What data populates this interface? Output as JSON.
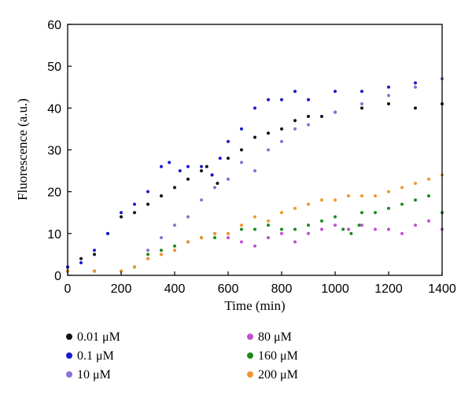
{
  "chart_data": {
    "type": "scatter",
    "title": "",
    "xlabel": "Time (min)",
    "ylabel": "Fluorescence (a.u.)",
    "xlim": [
      0,
      1400
    ],
    "ylim": [
      0,
      60
    ],
    "xticks": [
      0,
      200,
      400,
      600,
      800,
      1000,
      1200,
      1400
    ],
    "yticks": [
      0,
      10,
      20,
      30,
      40,
      50,
      60
    ],
    "grid": false,
    "legend_position": "below",
    "series": [
      {
        "name": "0.01 μM",
        "color": "#111111",
        "x": [
          0,
          50,
          100,
          150,
          200,
          250,
          300,
          350,
          400,
          450,
          500,
          520,
          540,
          560,
          600,
          650,
          700,
          750,
          800,
          850,
          900,
          950,
          1000,
          1100,
          1200,
          1300,
          1400
        ],
        "y": [
          2,
          4,
          5,
          10,
          14,
          15,
          17,
          19,
          21,
          23,
          25,
          26,
          24,
          22,
          28,
          30,
          33,
          34,
          35,
          37,
          38,
          38,
          39,
          40,
          41,
          40,
          41
        ]
      },
      {
        "name": "0.1 μM",
        "color": "#1a1acc",
        "x": [
          0,
          50,
          100,
          150,
          200,
          250,
          300,
          350,
          380,
          420,
          450,
          500,
          540,
          570,
          600,
          650,
          700,
          750,
          800,
          850,
          900,
          1000,
          1100,
          1200,
          1300,
          1400
        ],
        "y": [
          2,
          3,
          6,
          10,
          15,
          17,
          20,
          26,
          27,
          25,
          26,
          26,
          24,
          28,
          32,
          35,
          40,
          42,
          42,
          44,
          42,
          44,
          44,
          45,
          46,
          47
        ]
      },
      {
        "name": "10 μM",
        "color": "#8a6fd6",
        "x": [
          0,
          100,
          200,
          250,
          300,
          350,
          400,
          450,
          500,
          550,
          600,
          650,
          700,
          750,
          800,
          850,
          900,
          1000,
          1100,
          1200,
          1300,
          1400
        ],
        "y": [
          1,
          1,
          1,
          2,
          6,
          9,
          12,
          14,
          18,
          21,
          23,
          27,
          25,
          30,
          32,
          35,
          36,
          39,
          41,
          43,
          45,
          47
        ]
      },
      {
        "name": "80 μM",
        "color": "#c050d0",
        "x": [
          0,
          100,
          200,
          250,
          300,
          350,
          400,
          450,
          500,
          550,
          600,
          650,
          700,
          750,
          800,
          850,
          900,
          950,
          1000,
          1050,
          1100,
          1150,
          1200,
          1250,
          1300,
          1350,
          1400
        ],
        "y": [
          1,
          1,
          1,
          2,
          4,
          5,
          6,
          8,
          9,
          10,
          9,
          8,
          7,
          9,
          10,
          8,
          10,
          11,
          12,
          11,
          12,
          11,
          11,
          10,
          12,
          13,
          11
        ]
      },
      {
        "name": "160 μM",
        "color": "#1e8a1e",
        "x": [
          0,
          100,
          200,
          250,
          300,
          350,
          400,
          450,
          500,
          550,
          600,
          650,
          700,
          750,
          800,
          850,
          900,
          950,
          1000,
          1030,
          1060,
          1090,
          1100,
          1150,
          1200,
          1250,
          1300,
          1350,
          1400
        ],
        "y": [
          1,
          1,
          1,
          2,
          5,
          6,
          7,
          8,
          9,
          9,
          10,
          11,
          11,
          12,
          11,
          11,
          12,
          13,
          14,
          11,
          10,
          12,
          15,
          15,
          16,
          17,
          18,
          19,
          15
        ]
      },
      {
        "name": "200 μM",
        "color": "#f0962e",
        "x": [
          0,
          100,
          200,
          250,
          300,
          350,
          400,
          450,
          500,
          550,
          600,
          650,
          700,
          750,
          800,
          850,
          900,
          950,
          1000,
          1050,
          1100,
          1150,
          1200,
          1250,
          1300,
          1350,
          1400
        ],
        "y": [
          1,
          1,
          1,
          2,
          4,
          5,
          6,
          8,
          9,
          10,
          10,
          12,
          14,
          13,
          15,
          16,
          17,
          18,
          18,
          19,
          19,
          19,
          20,
          21,
          22,
          23,
          24
        ]
      }
    ]
  }
}
